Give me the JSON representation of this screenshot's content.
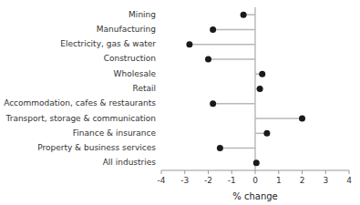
{
  "chart_data": {
    "type": "lollipop",
    "orientation": "horizontal",
    "categories": [
      "Mining",
      "Manufacturing",
      "Electricity, gas & water",
      "Construction",
      "Wholesale",
      "Retail",
      "Accommodation, cafes & restaurants",
      "Transport, storage & communication",
      "Finance & insurance",
      "Property & business services",
      "All industries"
    ],
    "values": [
      -0.5,
      -1.8,
      -2.8,
      -2.0,
      0.3,
      0.2,
      -1.8,
      2.0,
      0.5,
      -1.5,
      0.05
    ],
    "color": "#1a1a1a",
    "xlabel": "% change",
    "xlim": [
      -4,
      4
    ],
    "xticks": [
      -4,
      -3,
      -2,
      -1,
      0,
      1,
      2,
      3,
      4
    ],
    "grid": false
  }
}
